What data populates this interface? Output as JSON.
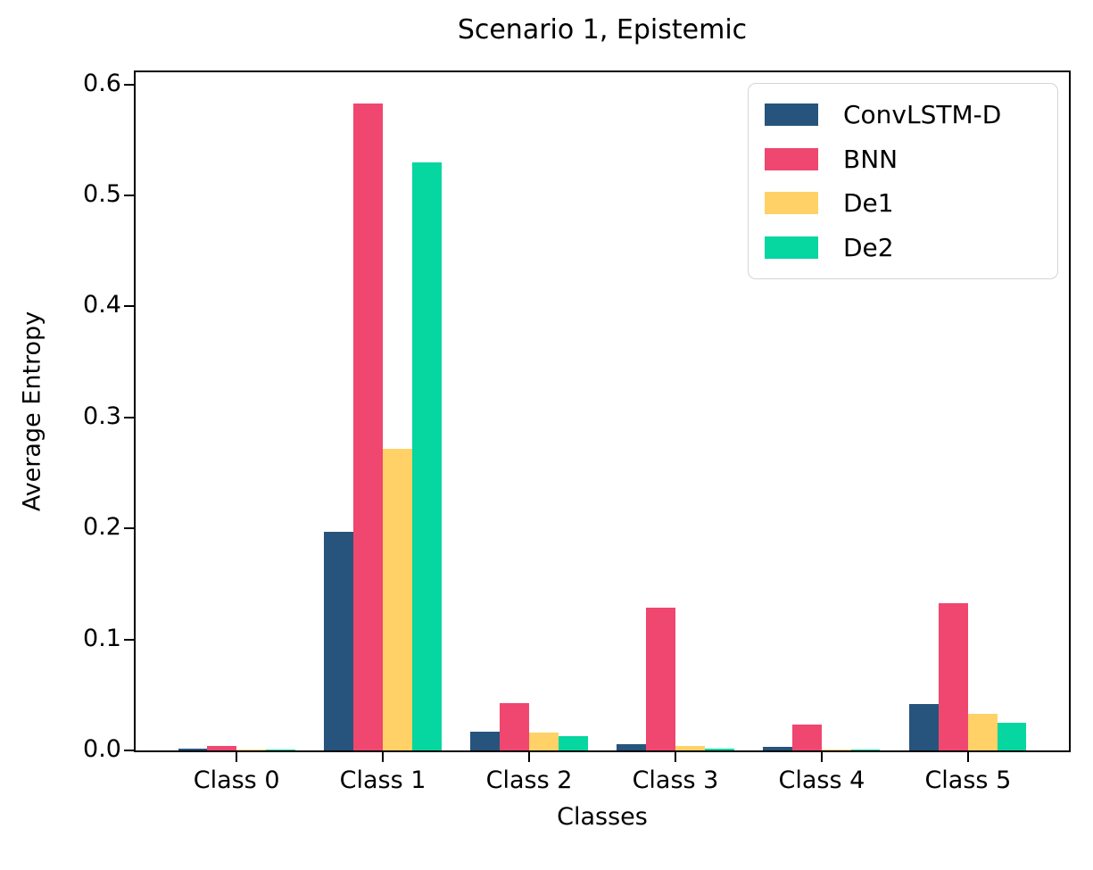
{
  "chart_data": {
    "type": "bar",
    "title": "Scenario 1, Epistemic",
    "xlabel": "Classes",
    "ylabel": "Average Entropy",
    "categories": [
      "Class 0",
      "Class 1",
      "Class 2",
      "Class 3",
      "Class 4",
      "Class 5"
    ],
    "series": [
      {
        "name": "ConvLSTM-D",
        "color": "#26547C",
        "values": [
          0.002,
          0.197,
          0.017,
          0.006,
          0.003,
          0.042
        ]
      },
      {
        "name": "BNN",
        "color": "#EF476F",
        "values": [
          0.004,
          0.583,
          0.043,
          0.129,
          0.023,
          0.133
        ]
      },
      {
        "name": "De1",
        "color": "#FFD166",
        "values": [
          0.001,
          0.272,
          0.016,
          0.004,
          0.001,
          0.033
        ]
      },
      {
        "name": "De2",
        "color": "#06D6A0",
        "values": [
          0.0005,
          0.53,
          0.013,
          0.002,
          0.001,
          0.025
        ]
      }
    ],
    "yticks": [
      0.0,
      0.1,
      0.2,
      0.3,
      0.4,
      0.5,
      0.6
    ],
    "ytick_labels": [
      "0.0",
      "0.1",
      "0.2",
      "0.3",
      "0.4",
      "0.5",
      "0.6"
    ],
    "ylim": [
      0,
      0.611
    ],
    "xlim": [
      -0.69,
      5.69
    ],
    "bar_width": 0.2,
    "grid": false,
    "legend_position": "upper right",
    "axis_color": "#000000",
    "background_color": "#ffffff"
  }
}
